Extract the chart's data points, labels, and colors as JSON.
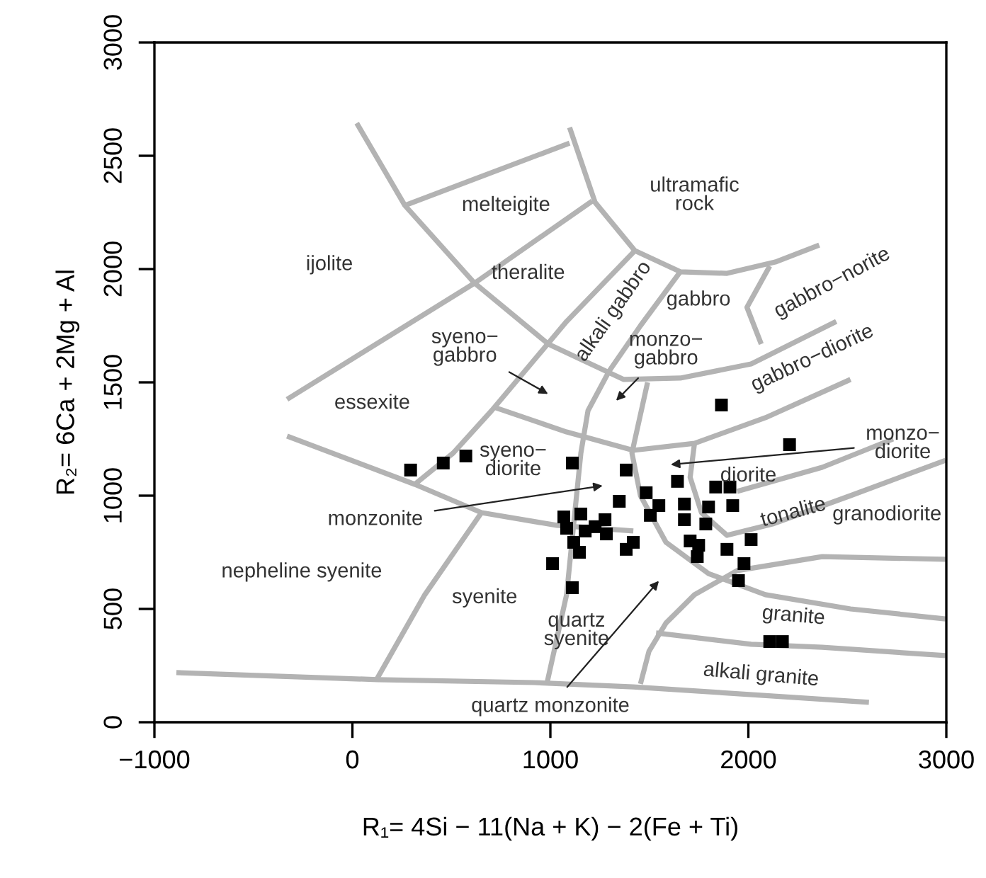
{
  "chart_data": {
    "type": "scatter",
    "xlabel": "R₁= 4Si − 11(Na + K) − 2(Fe + Ti)",
    "ylabel": "R₂= 6Ca + 2Mg + Al",
    "xlim": [
      -1000,
      3000
    ],
    "ylim": [
      0,
      3000
    ],
    "xticks": [
      {
        "value": -1000,
        "label": "−1000"
      },
      0,
      1000,
      2000,
      3000
    ],
    "yticks": [
      0,
      500,
      1000,
      1500,
      2000,
      2500,
      3000
    ],
    "grid": false,
    "legend": false,
    "marker": "square",
    "series": [
      {
        "color": "#000000",
        "x": [
          294,
          459,
          573,
          1111,
          1011,
          1111,
          1864,
          2208,
          1383,
          1642,
          1484,
          1348,
          1548,
          1505,
          1677,
          1677,
          1799,
          1835,
          1907,
          1921,
          1785,
          2014,
          1892,
          1978,
          1950,
          1706,
          1749,
          1742,
          1419,
          1383,
          1068,
          1154,
          1082,
          1176,
          1276,
          1283,
          1118,
          1147,
          1226,
          2108,
          2172
        ],
        "values": [
          1113,
          1144,
          1175,
          1144,
          700,
          594,
          1400,
          1225,
          1113,
          1063,
          1013,
          975,
          956,
          913,
          963,
          894,
          950,
          1038,
          1038,
          956,
          875,
          806,
          763,
          700,
          625,
          800,
          781,
          731,
          794,
          763,
          906,
          919,
          856,
          844,
          894,
          831,
          794,
          750,
          863,
          356,
          356
        ]
      },
      {
        "type": "line",
        "color": "#b3b3b3",
        "marker": "none",
        "x": [
          22,
          265,
          617,
          990,
          1369,
          1656,
          2014,
          2444
        ],
        "values": [
          2644,
          2281,
          1938,
          1669,
          1513,
          1519,
          1581,
          1769
        ]
      },
      {
        "type": "line",
        "color": "#b3b3b3",
        "marker": "none",
        "x": [
          1097,
          1226,
          1427,
          1656,
          1892,
          2136,
          2358
        ],
        "values": [
          2625,
          2294,
          2081,
          1988,
          1981,
          2031,
          2106
        ]
      },
      {
        "type": "line",
        "color": "#b3b3b3",
        "marker": "none",
        "x": [
          265,
          1097
        ],
        "values": [
          2281,
          2556
        ]
      },
      {
        "type": "line",
        "color": "#b3b3b3",
        "marker": "none",
        "x": [
          -330,
          617,
          1211
        ],
        "values": [
          1425,
          1938,
          2300
        ]
      },
      {
        "type": "line",
        "color": "#b3b3b3",
        "marker": "none",
        "x": [
          1427,
          1082,
          703,
          509,
          315
        ],
        "values": [
          2081,
          1769,
          1375,
          1188,
          1050
        ]
      },
      {
        "type": "line",
        "color": "#b3b3b3",
        "marker": "none",
        "x": [
          1656,
          1455,
          1297,
          1190,
          1154,
          1125,
          1082,
          982
        ],
        "values": [
          1988,
          1750,
          1550,
          1375,
          1188,
          938,
          563,
          169
        ]
      },
      {
        "type": "line",
        "color": "#b3b3b3",
        "marker": "none",
        "x": [
          1491,
          1412,
          1455,
          1584,
          1799,
          2086,
          2516,
          2996
        ],
        "values": [
          1500,
          1188,
          1000,
          794,
          656,
          563,
          500,
          456
        ]
      },
      {
        "type": "line",
        "color": "#b3b3b3",
        "marker": "none",
        "x": [
          724,
          1082,
          1419,
          1728,
          2086,
          2516
        ],
        "values": [
          1388,
          1281,
          1200,
          1231,
          1344,
          1513
        ]
      },
      {
        "type": "line",
        "color": "#b3b3b3",
        "marker": "none",
        "x": [
          2108,
          1993,
          2065
        ],
        "values": [
          2013,
          1831,
          1669
        ]
      },
      {
        "type": "line",
        "color": "#b3b3b3",
        "marker": "none",
        "x": [
          1728,
          1706,
          1763,
          1892,
          2122,
          2516,
          2996
        ],
        "values": [
          1231,
          1081,
          925,
          825,
          875,
          1000,
          1156
        ]
      },
      {
        "type": "line",
        "color": "#b3b3b3",
        "marker": "none",
        "x": [
          1943,
          2373,
          2731
        ],
        "values": [
          1019,
          1125,
          1250
        ]
      },
      {
        "type": "line",
        "color": "#b3b3b3",
        "marker": "none",
        "x": [
          -330,
          315,
          652,
          1032,
          1419
        ],
        "values": [
          1263,
          1050,
          925,
          869,
          844
        ]
      },
      {
        "type": "line",
        "color": "#b3b3b3",
        "marker": "none",
        "x": [
          652,
          366,
          122
        ],
        "values": [
          925,
          563,
          188
        ]
      },
      {
        "type": "line",
        "color": "#b3b3b3",
        "marker": "none",
        "x": [
          -889,
          129,
          918,
          1419,
          2609
        ],
        "values": [
          219,
          188,
          175,
          156,
          88
        ]
      },
      {
        "type": "line",
        "color": "#b3b3b3",
        "marker": "none",
        "x": [
          1455,
          1498,
          1584,
          1728,
          1943,
          2373,
          2996
        ],
        "values": [
          169,
          313,
          438,
          563,
          669,
          731,
          719
        ]
      },
      {
        "type": "line",
        "color": "#b3b3b3",
        "marker": "none",
        "x": [
          1534,
          2014,
          2373,
          2996
        ],
        "values": [
          394,
          344,
          331,
          294
        ]
      }
    ],
    "annotations": [
      "melteigite",
      "ijolite",
      "theralite",
      "ultramafic\nrock",
      "alkali gabbro",
      "gabbro",
      "gabbro−norite",
      "gabbro−diorite",
      "monzo−\ngabbro",
      "syeno−\ngabbro",
      "essexite",
      "syeno−\ndiorite",
      "monzonite",
      "nepheline syenite",
      "syenite",
      "quartz\nsyenite",
      "quartz monzonite",
      "alkali granite",
      "granite",
      "granodiorite",
      "tonalite",
      "diorite",
      "monzo−\ndiorite"
    ]
  }
}
